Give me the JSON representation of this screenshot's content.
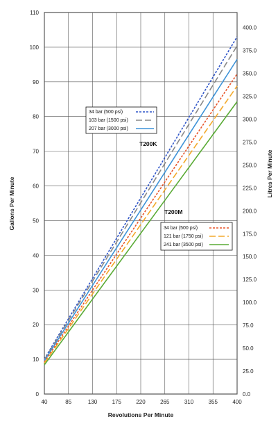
{
  "chart_data": {
    "type": "line",
    "xlabel": "Revolutions Per Minute",
    "ylabel": "Gallons Per Minute",
    "y2label": "Litres Per Minute",
    "xlim": [
      40,
      400
    ],
    "ylim": [
      0,
      110
    ],
    "y2lim": [
      0,
      416.4
    ],
    "x_ticks": [
      "40",
      "85",
      "130",
      "175",
      "220",
      "265",
      "310",
      "355",
      "400"
    ],
    "y_ticks": [
      "0",
      "10",
      "20",
      "30",
      "40",
      "50",
      "60",
      "70",
      "80",
      "90",
      "100",
      "110"
    ],
    "y2_ticks": [
      "0.0",
      "25.0",
      "50.0",
      "75.0",
      "100.0",
      "125.0",
      "150.0",
      "175.0",
      "200.0",
      "225.0",
      "250.0",
      "275.0",
      "300.0",
      "325.0",
      "350.0",
      "375.0",
      "400.0"
    ],
    "grid": true,
    "groups": [
      {
        "name": "T200K",
        "series": [
          {
            "name": "34 bar (500 psi)",
            "x": [
              40,
              400
            ],
            "y": [
              10.1,
              103.0
            ],
            "color": "#2f55c8",
            "dash": "short"
          },
          {
            "name": "103 bar (1500 psi)",
            "x": [
              40,
              400
            ],
            "y": [
              9.9,
              100.4
            ],
            "color": "#888888",
            "dash": "long"
          },
          {
            "name": "207 bar (3000 psi)",
            "x": [
              40,
              400
            ],
            "y": [
              9.6,
              96.5
            ],
            "color": "#3f93d8",
            "dash": "solid"
          }
        ]
      },
      {
        "name": "T200M",
        "series": [
          {
            "name": "34 bar (500 psi)",
            "x": [
              40,
              400
            ],
            "y": [
              9.2,
              92.3
            ],
            "color": "#e8552a",
            "dash": "short"
          },
          {
            "name": "121 bar (1750 psi)",
            "x": [
              40,
              400
            ],
            "y": [
              8.9,
              88.8
            ],
            "color": "#f3a92a",
            "dash": "long"
          },
          {
            "name": "241 bar (3500 psi)",
            "x": [
              40,
              400
            ],
            "y": [
              8.4,
              84.3
            ],
            "color": "#5aab36",
            "dash": "solid"
          }
        ]
      }
    ]
  }
}
